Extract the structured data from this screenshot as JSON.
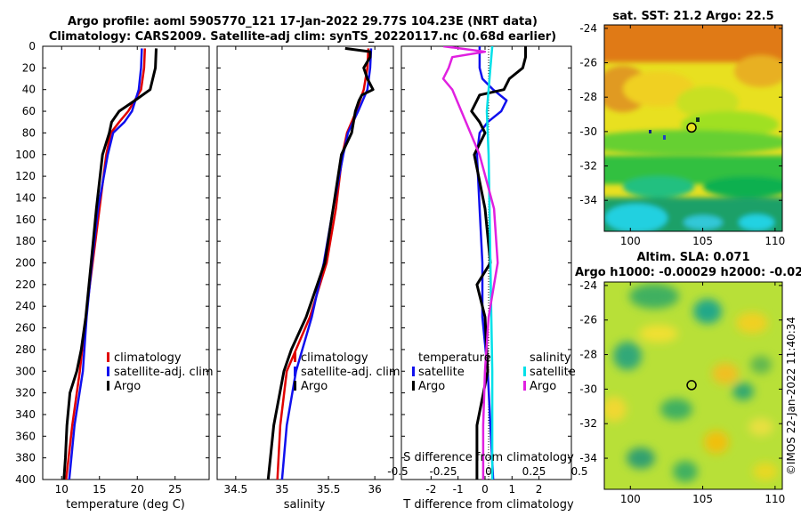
{
  "header": {
    "title_line1": "Argo profile: aoml 5905770_121 17-Jan-2022 29.77S 104.23E (NRT data)",
    "title_line2": "Climatology: CARS2009. Satellite-adj clim: synTS_20220117.nc (0.68d earlier)"
  },
  "credit": "©IMOS 22-Jan-2022 11:40:34",
  "colors": {
    "argo": "#000000",
    "climatology": "#e00000",
    "satellite_adj": "#1010ee",
    "satellite_s": "#00e0e8",
    "argo_s": "#e020e0"
  },
  "chart_data": [
    {
      "id": "temperature",
      "type": "line",
      "xlabel": "temperature (deg C)",
      "xlim": [
        7.5,
        29.5
      ],
      "xticks": [
        "10",
        "15",
        "20",
        "25"
      ],
      "xtick_values": [
        10,
        15,
        20,
        25
      ],
      "ylim": [
        0,
        400
      ],
      "yticks": [
        "0",
        "20",
        "40",
        "60",
        "80",
        "100",
        "120",
        "140",
        "160",
        "180",
        "200",
        "220",
        "240",
        "260",
        "280",
        "300",
        "320",
        "340",
        "360",
        "380",
        "400"
      ],
      "legend": [
        "climatology",
        "satellite-adj. clim",
        "Argo"
      ],
      "series": [
        {
          "name": "climatology",
          "depth": [
            2,
            20,
            40,
            60,
            70,
            80,
            100,
            150,
            200,
            250,
            300,
            350,
            400
          ],
          "values": [
            21.0,
            20.9,
            20.5,
            18.8,
            17.6,
            16.5,
            15.9,
            15.0,
            14.1,
            13.2,
            12.4,
            11.4,
            10.6
          ]
        },
        {
          "name": "satellite-adj. clim",
          "depth": [
            2,
            20,
            40,
            60,
            70,
            80,
            100,
            150,
            200,
            250,
            300,
            350,
            400
          ],
          "values": [
            20.6,
            20.5,
            20.2,
            19.3,
            18.3,
            16.8,
            16.1,
            14.8,
            14.0,
            13.3,
            12.8,
            11.7,
            11.0
          ]
        },
        {
          "name": "Argo",
          "depth": [
            2,
            20,
            40,
            50,
            60,
            70,
            80,
            100,
            150,
            200,
            250,
            280,
            300,
            320,
            350,
            380,
            400
          ],
          "values": [
            22.5,
            22.4,
            21.7,
            19.7,
            17.6,
            16.6,
            16.3,
            15.4,
            14.6,
            13.9,
            13.2,
            12.6,
            12.0,
            11.1,
            10.7,
            10.5,
            10.3
          ]
        }
      ]
    },
    {
      "id": "salinity",
      "type": "line",
      "xlabel": "salinity",
      "xlim": [
        34.3,
        36.2
      ],
      "xticks": [
        "34.5",
        "35",
        "35.5",
        "36"
      ],
      "xtick_values": [
        34.5,
        35,
        35.5,
        36
      ],
      "ylim": [
        0,
        400
      ],
      "legend": [
        "climatology",
        "satellite-adj. clim",
        "Argo"
      ],
      "series": [
        {
          "name": "climatology",
          "depth": [
            2,
            20,
            40,
            60,
            80,
            100,
            150,
            200,
            250,
            300,
            350,
            400
          ],
          "values": [
            35.93,
            35.92,
            35.88,
            35.8,
            35.7,
            35.65,
            35.58,
            35.48,
            35.3,
            35.05,
            34.98,
            34.95
          ]
        },
        {
          "name": "satellite-adj. clim",
          "depth": [
            2,
            20,
            40,
            60,
            80,
            100,
            150,
            200,
            250,
            300,
            350,
            400
          ],
          "values": [
            35.96,
            35.95,
            35.92,
            35.82,
            35.71,
            35.66,
            35.55,
            35.45,
            35.32,
            35.15,
            35.05,
            35.0
          ]
        },
        {
          "name": "Argo",
          "depth": [
            2,
            5,
            10,
            20,
            30,
            40,
            45,
            50,
            60,
            80,
            100,
            150,
            200,
            250,
            280,
            300,
            350,
            400
          ],
          "values": [
            35.68,
            35.95,
            35.95,
            35.88,
            35.92,
            35.98,
            35.86,
            35.83,
            35.79,
            35.75,
            35.64,
            35.55,
            35.46,
            35.26,
            35.1,
            35.02,
            34.91,
            34.85
          ]
        }
      ]
    },
    {
      "id": "difference",
      "type": "line",
      "xlabel": "T difference from climatology",
      "xlim": [
        -3.1,
        3.2
      ],
      "xticks": [
        "-2",
        "-1",
        "0",
        "1",
        "2"
      ],
      "xtick_values": [
        -2,
        -1,
        0,
        1,
        2
      ],
      "top_axis_label": "S difference from climatology",
      "top_ticks": [
        "-0.5",
        "-0.25",
        "0",
        "0.25",
        "0.5"
      ],
      "top_tick_values": [
        -0.5,
        -0.25,
        0,
        0.25,
        0.5
      ],
      "ylim": [
        0,
        400
      ],
      "legend": {
        "temperature_title": "temperature",
        "salinity_title": "salinity",
        "temperature_items": [
          "satellite",
          "Argo"
        ],
        "salinity_items": [
          "satellite",
          "Argo"
        ]
      },
      "series": [
        {
          "name": "temperature satellite",
          "depth": [
            0,
            20,
            30,
            40,
            50,
            60,
            70,
            80,
            100,
            150,
            200,
            250,
            300,
            350,
            400
          ],
          "values": [
            -0.2,
            -0.2,
            -0.1,
            0.3,
            0.8,
            0.6,
            0.1,
            -0.2,
            -0.3,
            -0.2,
            -0.1,
            -0.1,
            0.1,
            0.2,
            0.3
          ]
        },
        {
          "name": "temperature Argo",
          "depth": [
            0,
            10,
            20,
            30,
            40,
            45,
            50,
            60,
            70,
            80,
            100,
            150,
            200,
            220,
            250,
            300,
            350,
            400
          ],
          "values": [
            1.5,
            1.5,
            1.4,
            0.9,
            0.7,
            -0.2,
            -0.3,
            -0.5,
            -0.2,
            0.0,
            -0.4,
            0.0,
            0.2,
            -0.3,
            0.0,
            0.1,
            -0.3,
            -0.3
          ]
        },
        {
          "name": "salinity satellite",
          "depth": [
            0,
            20,
            40,
            60,
            100,
            200,
            300,
            400
          ],
          "values": [
            0.02,
            0.01,
            0.0,
            -0.01,
            0.0,
            0.01,
            0.02,
            0.02
          ]
        },
        {
          "name": "salinity Argo",
          "depth": [
            0,
            5,
            10,
            20,
            30,
            40,
            60,
            80,
            100,
            150,
            200,
            250,
            300,
            350,
            400
          ],
          "values": [
            -0.25,
            -0.02,
            -0.2,
            -0.22,
            -0.25,
            -0.2,
            -0.15,
            -0.1,
            -0.05,
            0.03,
            0.05,
            0.0,
            -0.02,
            -0.03,
            -0.03
          ]
        }
      ]
    },
    {
      "id": "sst_map",
      "type": "heatmap",
      "title": "sat. SST: 21.2 Argo: 22.5",
      "xlim": [
        98.2,
        110.5
      ],
      "ylim": [
        -35.8,
        -23.8
      ],
      "xticks": [
        "100",
        "105",
        "110"
      ],
      "xtick_values": [
        100,
        105,
        110
      ],
      "yticks": [
        "-24",
        "-26",
        "-28",
        "-30",
        "-32",
        "-34"
      ],
      "ytick_values": [
        -24,
        -26,
        -28,
        -30,
        -32,
        -34
      ],
      "marker": {
        "lon": 104.23,
        "lat": -29.77
      }
    },
    {
      "id": "sla_map",
      "type": "heatmap",
      "title": "Altim. SLA: 0.071",
      "subtitle": "Argo h1000: -0.00029 h2000: -0.02",
      "xlim": [
        98.2,
        110.5
      ],
      "ylim": [
        -35.8,
        -23.8
      ],
      "xticks": [
        "100",
        "105",
        "110"
      ],
      "xtick_values": [
        100,
        105,
        110
      ],
      "yticks": [
        "-24",
        "-26",
        "-28",
        "-30",
        "-32",
        "-34"
      ],
      "ytick_values": [
        -24,
        -26,
        -28,
        -30,
        -32,
        -34
      ],
      "marker": {
        "lon": 104.23,
        "lat": -29.77
      }
    }
  ]
}
